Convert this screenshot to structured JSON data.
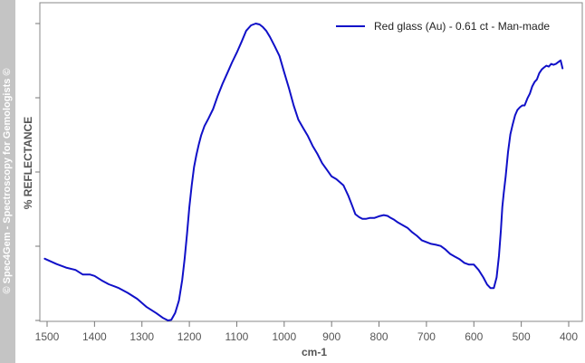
{
  "watermark": "© Spec4Gem - Spectroscopy for Gemologists ©",
  "colors": {
    "series": "#1010c8",
    "axis": "#777777",
    "tick_text": "#555555",
    "strip": "#c4c4c4"
  },
  "chart_data": {
    "type": "line",
    "title": "",
    "xlabel": "cm-1",
    "ylabel": "%  REFLECTANCE",
    "xlim": [
      1500,
      400
    ],
    "x_reversed": true,
    "xticks": [
      1500,
      1400,
      1300,
      1200,
      1100,
      1000,
      900,
      800,
      700,
      600,
      500,
      400
    ],
    "yticks_labeled": false,
    "ylim": [
      0,
      100
    ],
    "grid": false,
    "legend_position": "top-right",
    "series": [
      {
        "name": "Red glass (Au) - 0.61 ct - Man-made",
        "color": "#1010c8",
        "x": [
          1505,
          1480,
          1460,
          1440,
          1425,
          1410,
          1400,
          1385,
          1370,
          1350,
          1330,
          1310,
          1290,
          1270,
          1255,
          1245,
          1238,
          1230,
          1222,
          1215,
          1210,
          1205,
          1200,
          1195,
          1190,
          1185,
          1180,
          1175,
          1168,
          1160,
          1150,
          1140,
          1130,
          1120,
          1110,
          1100,
          1090,
          1080,
          1070,
          1060,
          1052,
          1045,
          1038,
          1030,
          1020,
          1010,
          1000,
          990,
          980,
          970,
          960,
          950,
          940,
          930,
          920,
          910,
          900,
          890,
          875,
          865,
          857,
          850,
          842,
          835,
          828,
          820,
          810,
          800,
          790,
          782,
          775,
          768,
          760,
          750,
          740,
          730,
          720,
          710,
          700,
          690,
          680,
          670,
          660,
          650,
          640,
          630,
          620,
          610,
          600,
          590,
          580,
          572,
          565,
          558,
          552,
          547,
          543,
          540,
          537,
          533,
          528,
          523,
          518,
          513,
          508,
          503,
          498,
          493,
          487,
          482,
          477,
          472,
          467,
          462,
          457,
          452,
          447,
          442,
          437,
          432,
          427,
          422,
          417,
          413
        ],
        "y": [
          20.8,
          19.0,
          17.8,
          17.0,
          15.5,
          15.5,
          15.0,
          13.5,
          12.2,
          11.0,
          9.3,
          7.3,
          4.5,
          2.5,
          0.8,
          0.0,
          0.2,
          2.5,
          6.7,
          13.6,
          20.8,
          29.1,
          38.2,
          45.5,
          51.7,
          55.8,
          59.4,
          62.4,
          65.5,
          67.9,
          71.2,
          75.7,
          79.7,
          83.3,
          86.9,
          90.2,
          93.8,
          97.6,
          99.4,
          100.0,
          99.7,
          98.8,
          97.6,
          95.5,
          92.4,
          89.1,
          83.6,
          78.2,
          72.4,
          67.6,
          64.8,
          62.1,
          58.8,
          56.1,
          53.0,
          50.8,
          48.5,
          47.6,
          45.5,
          42.1,
          38.8,
          35.8,
          34.8,
          34.2,
          34.2,
          34.5,
          34.5,
          35.1,
          35.5,
          35.2,
          34.5,
          33.9,
          33.0,
          32.1,
          31.2,
          29.7,
          28.5,
          27.0,
          26.4,
          25.8,
          25.5,
          25.1,
          23.9,
          22.4,
          21.5,
          20.6,
          19.4,
          18.8,
          18.8,
          17.0,
          14.5,
          12.1,
          10.9,
          10.9,
          14.5,
          21.8,
          30.3,
          38.2,
          43.0,
          48.5,
          56.7,
          62.7,
          66.1,
          69.1,
          70.9,
          71.8,
          72.4,
          72.4,
          74.8,
          76.4,
          78.8,
          80.3,
          81.2,
          83.3,
          84.5,
          85.2,
          85.8,
          85.5,
          86.4,
          86.1,
          86.4,
          87.0,
          87.6,
          84.9
        ]
      }
    ]
  }
}
